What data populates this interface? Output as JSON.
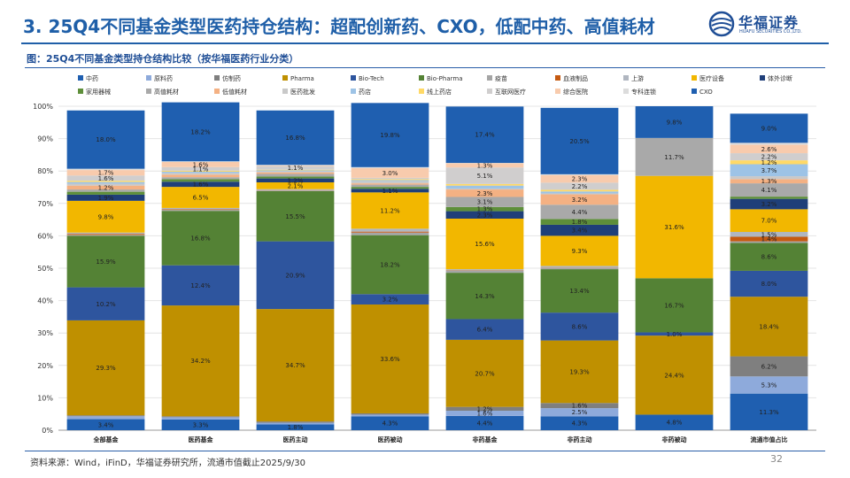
{
  "header": {
    "title": "3. 25Q4不同基金类型医药持仓结构：超配创新药、CXO，低配中药、高值耗材",
    "logo_cn": "华福证券",
    "logo_en": "HUAFU SECURITIES CO.,LTD."
  },
  "footer": {
    "source": "资料来源：Wind，iFinD，华福证券研究所，流通市值截止2025/9/30",
    "page_number": "32"
  },
  "colors": {
    "accent": "#1f5fa8",
    "series": [
      "#1f5fb0",
      "#8eaadb",
      "#7f7f7f",
      "#bf9000",
      "#2e559e",
      "#548235",
      "#a5a5a5",
      "#c55a11",
      "#b0b6c0",
      "#f2b700",
      "#1f3f79",
      "#5e8f3a",
      "#a9a9a9",
      "#f4b183",
      "#c9c9c9",
      "#9dc3e6",
      "#ffd966",
      "#d0cece",
      "#f8cbad",
      "#dcdcdc"
    ]
  },
  "chart_data": {
    "type": "bar",
    "stacked": true,
    "title": "图：25Q4不同基金类型持仓结构比较（按华福医药行业分类）",
    "ylim": [
      0,
      100
    ],
    "yticks": [
      "0%",
      "10%",
      "20%",
      "30%",
      "40%",
      "50%",
      "60%",
      "70%",
      "80%",
      "90%",
      "100%"
    ],
    "categories": [
      "全部基金",
      "医药基金",
      "医药主动",
      "医药被动",
      "非药基金",
      "非药主动",
      "非药被动",
      "流通市值占比"
    ],
    "series": [
      {
        "name": "中药",
        "values": [
          3.4,
          3.3,
          1.8,
          4.3,
          4.4,
          4.3,
          4.8,
          11.3
        ]
      },
      {
        "name": "原料药",
        "values": [
          0.9,
          0.7,
          0.5,
          0.5,
          1.6,
          2.5,
          0.0,
          5.3
        ]
      },
      {
        "name": "仿制药",
        "values": [
          0.3,
          0.3,
          0.4,
          0.4,
          1.2,
          1.6,
          0.0,
          6.2
        ]
      },
      {
        "name": "Pharma",
        "values": [
          29.3,
          34.2,
          34.7,
          33.6,
          20.7,
          19.3,
          24.4,
          18.4
        ]
      },
      {
        "name": "Bio-Tech",
        "values": [
          10.2,
          12.4,
          20.9,
          3.2,
          6.4,
          8.6,
          1.0,
          8.0
        ]
      },
      {
        "name": "Bio-Pharma",
        "values": [
          15.9,
          16.8,
          15.5,
          18.2,
          14.3,
          13.4,
          16.7,
          8.6
        ]
      },
      {
        "name": "疫苗",
        "values": [
          0.3,
          0.3,
          0.2,
          0.8,
          0.6,
          0.4,
          0.0,
          0.5
        ]
      },
      {
        "name": "血液制品",
        "values": [
          0.3,
          0.2,
          0.1,
          0.3,
          0.1,
          0.1,
          0.0,
          1.4
        ]
      },
      {
        "name": "上游",
        "values": [
          0.4,
          0.4,
          0.3,
          0.9,
          0.4,
          0.5,
          0.0,
          1.5
        ]
      },
      {
        "name": "医疗设备",
        "values": [
          9.8,
          6.5,
          2.1,
          11.2,
          15.6,
          9.3,
          31.6,
          7.0
        ]
      },
      {
        "name": "体外诊断",
        "values": [
          1.9,
          1.6,
          1.2,
          1.1,
          2.3,
          3.4,
          0.0,
          3.2
        ]
      },
      {
        "name": "家用器械",
        "values": [
          0.9,
          0.8,
          0.6,
          0.6,
          1.3,
          1.8,
          0.0,
          0.7
        ]
      },
      {
        "name": "高值耗材",
        "values": [
          0.7,
          0.6,
          0.8,
          0.7,
          3.1,
          4.4,
          11.7,
          4.1
        ]
      },
      {
        "name": "低值耗材",
        "values": [
          1.2,
          0.8,
          0.5,
          0.4,
          2.3,
          3.2,
          0.0,
          1.3
        ]
      },
      {
        "name": "医药批发",
        "values": [
          0.6,
          0.5,
          0.3,
          0.7,
          0.3,
          0.3,
          0.0,
          0.9
        ]
      },
      {
        "name": "药店",
        "values": [
          0.5,
          0.4,
          0.3,
          0.3,
          0.9,
          0.6,
          0.0,
          3.7
        ]
      },
      {
        "name": "线上药店",
        "values": [
          0.4,
          0.3,
          0.2,
          0.3,
          0.5,
          0.5,
          0.0,
          1.2
        ]
      },
      {
        "name": "互联网医疗",
        "values": [
          1.6,
          1.1,
          1.1,
          0.4,
          5.1,
          2.2,
          0.0,
          2.2
        ]
      },
      {
        "name": "综合医院",
        "values": [
          1.7,
          1.6,
          0.2,
          3.0,
          1.3,
          2.3,
          0.0,
          2.6
        ]
      },
      {
        "name": "专科连锁",
        "values": [
          0.4,
          0.2,
          0.2,
          0.3,
          0.1,
          0.3,
          0.0,
          0.6
        ]
      },
      {
        "name": "CXO",
        "values": [
          18.0,
          18.2,
          16.8,
          19.8,
          17.4,
          20.5,
          9.8,
          9.0
        ]
      }
    ]
  }
}
